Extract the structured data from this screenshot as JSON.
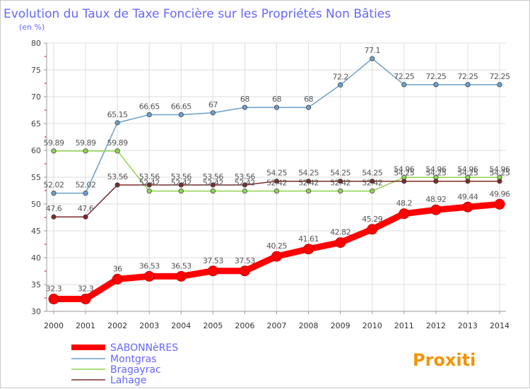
{
  "chart_data": {
    "type": "line",
    "title": "Evolution du Taux de Taxe Foncière sur les Propriétés Non Bâties",
    "subtitle": "(en %)",
    "x": [
      "2000",
      "2001",
      "2002",
      "2003",
      "2004",
      "2005",
      "2006",
      "2007",
      "2008",
      "2009",
      "2010",
      "2011",
      "2012",
      "2013",
      "2014"
    ],
    "ylim": [
      30,
      80
    ],
    "yticks": [
      30,
      35,
      40,
      45,
      50,
      55,
      60,
      65,
      70,
      75,
      80
    ],
    "grid": true,
    "legend_position": "bottom-left",
    "series": [
      {
        "name": "SABONNèRES",
        "color": "#ff0000",
        "values": [
          32.3,
          32.3,
          36,
          36.53,
          36.53,
          37.53,
          37.53,
          40.25,
          41.61,
          42.82,
          45.29,
          48.2,
          48.92,
          49.44,
          49.96
        ],
        "labels": [
          "32.3",
          "32.3",
          "36",
          "36.53",
          "36.53",
          "37.53",
          "37.53",
          "40.25",
          "41.61",
          "42.82",
          "45.29",
          "48.2",
          "48.92",
          "49.44",
          "49.96"
        ]
      },
      {
        "name": "Montgras",
        "color": "#6a9fcc",
        "values": [
          52.02,
          52.02,
          65.15,
          66.65,
          66.65,
          67,
          68,
          68,
          68,
          72.2,
          77.1,
          72.25,
          72.25,
          72.25,
          72.25
        ],
        "labels": [
          "52.02",
          "52.02",
          "65.15",
          "66.65",
          "66.65",
          "67",
          "68",
          "68",
          "68",
          "72.2",
          "77.1",
          "72.25",
          "72.25",
          "72.25",
          "72.25"
        ]
      },
      {
        "name": "Bragayrac",
        "color": "#8fd44f",
        "values": [
          59.89,
          59.89,
          59.89,
          52.42,
          52.42,
          52.42,
          52.42,
          52.42,
          52.42,
          52.42,
          52.42,
          54.96,
          54.96,
          54.96,
          54.96
        ],
        "labels": [
          "59.89",
          "59.89",
          "59.89",
          "52.42",
          "52.42",
          "52.42",
          "52.42",
          "52.42",
          "52.42",
          "52.42",
          "52.42",
          "54.96",
          "54.96",
          "54.96",
          "54.96"
        ]
      },
      {
        "name": "Lahage",
        "color": "#7a2a2a",
        "values": [
          47.6,
          47.6,
          53.56,
          53.56,
          53.56,
          53.56,
          53.56,
          54.25,
          54.25,
          54.25,
          54.25,
          54.25,
          54.25,
          54.25,
          54.25
        ],
        "labels": [
          "47.6",
          "47.6",
          "53.56",
          "53.56",
          "53.56",
          "53.56",
          "53.56",
          "54.25",
          "54.25",
          "54.25",
          "54.25",
          "54.25",
          "54.25",
          "54.25",
          "54.25"
        ]
      }
    ]
  },
  "legend": {
    "labels": [
      "SABONNèRES",
      "Montgras",
      "Bragayrac",
      "Lahage"
    ],
    "label_color": "#6666ff"
  },
  "logo": {
    "text": "Proxiti"
  }
}
